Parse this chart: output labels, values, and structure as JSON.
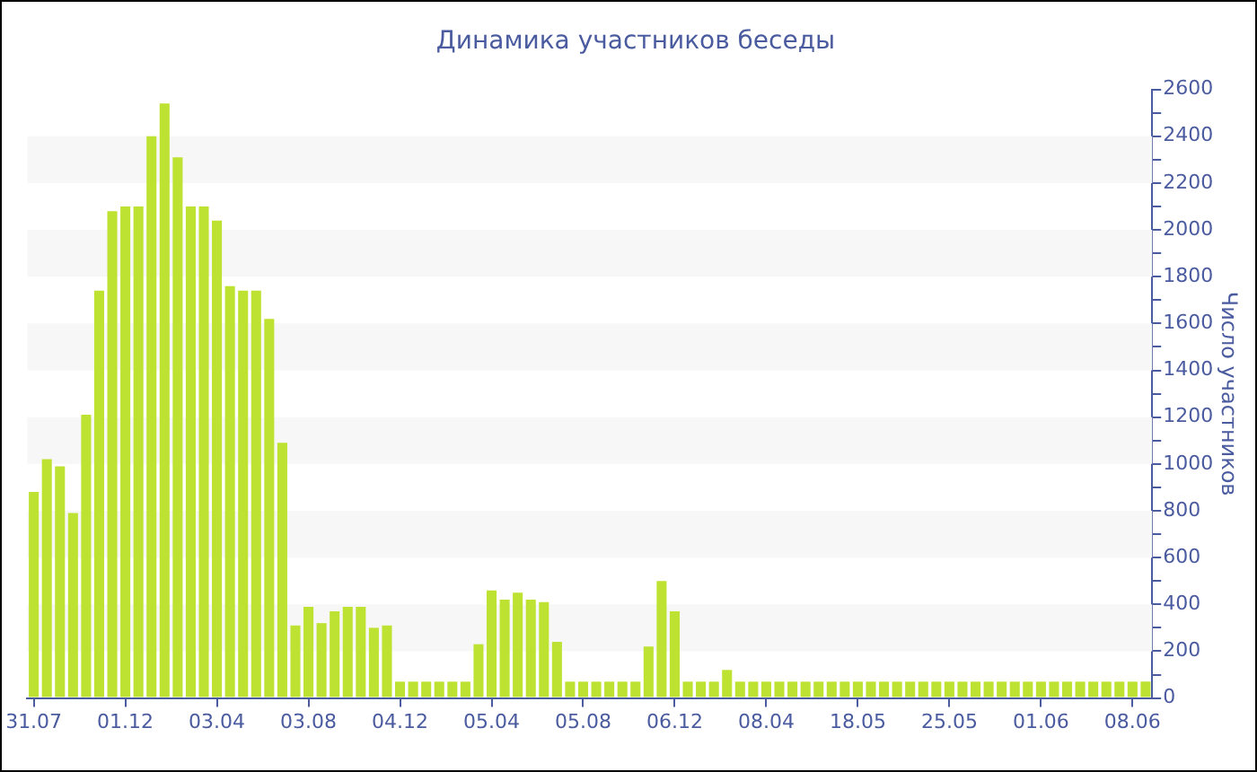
{
  "chart_data": {
    "type": "bar",
    "title": "Динамика участников беседы",
    "ylabel": "Число участников",
    "categories": [
      "31.07",
      null,
      null,
      null,
      null,
      null,
      null,
      "01.12",
      null,
      null,
      null,
      null,
      null,
      null,
      "03.04",
      null,
      null,
      null,
      null,
      null,
      null,
      "03.08",
      null,
      null,
      null,
      null,
      null,
      null,
      "04.12",
      null,
      null,
      null,
      null,
      null,
      null,
      "05.04",
      null,
      null,
      null,
      null,
      null,
      null,
      "05.08",
      null,
      null,
      null,
      null,
      null,
      null,
      "06.12",
      null,
      null,
      null,
      null,
      null,
      null,
      "08.04",
      null,
      null,
      null,
      null,
      null,
      null,
      "18.05",
      null,
      null,
      null,
      null,
      null,
      null,
      "25.05",
      null,
      null,
      null,
      null,
      null,
      null,
      "01.06",
      null,
      null,
      null,
      null,
      null,
      null,
      "08.06",
      null
    ],
    "values": [
      880,
      1020,
      990,
      790,
      1210,
      1740,
      2080,
      2100,
      2100,
      2400,
      2540,
      2310,
      2100,
      2100,
      2040,
      1760,
      1740,
      1740,
      1620,
      1090,
      310,
      390,
      320,
      370,
      390,
      390,
      300,
      310,
      70,
      70,
      70,
      70,
      70,
      70,
      230,
      460,
      420,
      450,
      420,
      410,
      240,
      70,
      70,
      70,
      70,
      70,
      70,
      220,
      500,
      370,
      70,
      70,
      70,
      120,
      70,
      70,
      70,
      70,
      70,
      70,
      70,
      70,
      70,
      70,
      70,
      70,
      70,
      70,
      70,
      70,
      70,
      70,
      70,
      70,
      70,
      70,
      70,
      70,
      70,
      70,
      70,
      70,
      70,
      70,
      70,
      70
    ],
    "color": "#bde232",
    "ylim": [
      0,
      2600
    ],
    "yticks": [
      0,
      {
        "value": 100,
        "label": null
      },
      200,
      {
        "value": 300,
        "label": null
      },
      400,
      {
        "value": 500,
        "label": null
      },
      600,
      {
        "value": 700,
        "label": null
      },
      800,
      {
        "value": 900,
        "label": null
      },
      1000,
      {
        "value": 1100,
        "label": null
      },
      1200,
      {
        "value": 1300,
        "label": null
      },
      1400,
      {
        "value": 1500,
        "label": null
      },
      1600,
      {
        "value": 1700,
        "label": null
      },
      1800,
      {
        "value": 1900,
        "label": null
      },
      2000,
      {
        "value": 2100,
        "label": null
      },
      2200,
      {
        "value": 2300,
        "label": null
      },
      2400,
      {
        "value": 2500,
        "label": null
      },
      2600
    ],
    "bands": [
      {
        "axis": "y",
        "from": 200,
        "to": 400,
        "color": "#f7f7f7"
      },
      {
        "axis": "y",
        "from": 600,
        "to": 800,
        "color": "#f7f7f7"
      },
      {
        "axis": "y",
        "from": 1000,
        "to": 1200,
        "color": "#f7f7f7"
      },
      {
        "axis": "y",
        "from": 1400,
        "to": 1600,
        "color": "#f7f7f7"
      },
      {
        "axis": "y",
        "from": 1800,
        "to": 2000,
        "color": "#f7f7f7"
      },
      {
        "axis": "y",
        "from": 2200,
        "to": 2400,
        "color": "#f7f7f7"
      }
    ]
  }
}
